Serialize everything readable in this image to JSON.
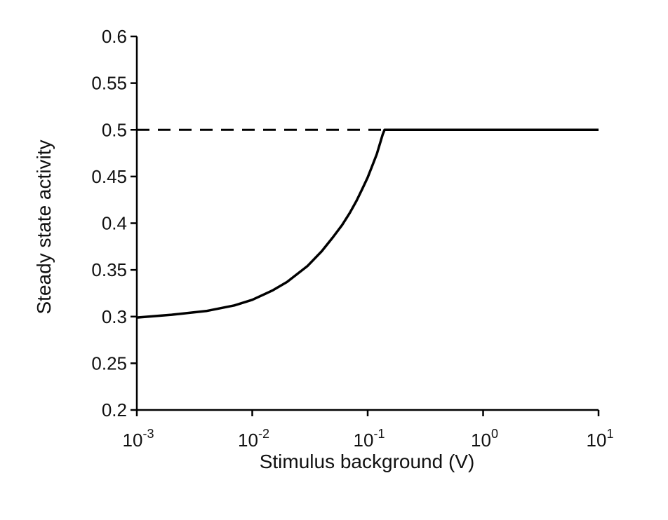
{
  "chart_data": {
    "type": "line",
    "title": "",
    "xlabel": "Stimulus background (V)",
    "ylabel": "Steady state activity",
    "xscale": "log",
    "xlim": [
      0.001,
      10
    ],
    "ylim": [
      0.2,
      0.6
    ],
    "x_ticks": [
      {
        "value": 0.001,
        "base": "10",
        "exp": "-3"
      },
      {
        "value": 0.01,
        "base": "10",
        "exp": "-2"
      },
      {
        "value": 0.1,
        "base": "10",
        "exp": "-1"
      },
      {
        "value": 1,
        "base": "10",
        "exp": "0"
      },
      {
        "value": 10,
        "base": "10",
        "exp": "1"
      }
    ],
    "y_ticks": [
      {
        "value": 0.2,
        "label": "0.2"
      },
      {
        "value": 0.25,
        "label": "0.25"
      },
      {
        "value": 0.3,
        "label": "0.3"
      },
      {
        "value": 0.35,
        "label": "0.35"
      },
      {
        "value": 0.4,
        "label": "0.4"
      },
      {
        "value": 0.45,
        "label": "0.45"
      },
      {
        "value": 0.5,
        "label": "0.5"
      },
      {
        "value": 0.55,
        "label": "0.55"
      },
      {
        "value": 0.6,
        "label": "0.6"
      }
    ],
    "series": [
      {
        "style": "solid",
        "color": "#000000",
        "x": [
          0.001,
          0.002,
          0.004,
          0.007,
          0.01,
          0.015,
          0.02,
          0.03,
          0.04,
          0.05,
          0.06,
          0.07,
          0.08,
          0.09,
          0.1,
          0.11,
          0.12,
          0.135,
          0.14,
          1,
          10
        ],
        "y": [
          0.299,
          0.302,
          0.306,
          0.312,
          0.318,
          0.328,
          0.337,
          0.354,
          0.37,
          0.385,
          0.398,
          0.411,
          0.424,
          0.437,
          0.449,
          0.462,
          0.474,
          0.495,
          0.5,
          0.5,
          0.5
        ]
      }
    ],
    "reference_line": {
      "style": "dashed",
      "color": "#000000",
      "y": 0.5,
      "x_from": 0.001,
      "x_to": 0.14
    }
  }
}
